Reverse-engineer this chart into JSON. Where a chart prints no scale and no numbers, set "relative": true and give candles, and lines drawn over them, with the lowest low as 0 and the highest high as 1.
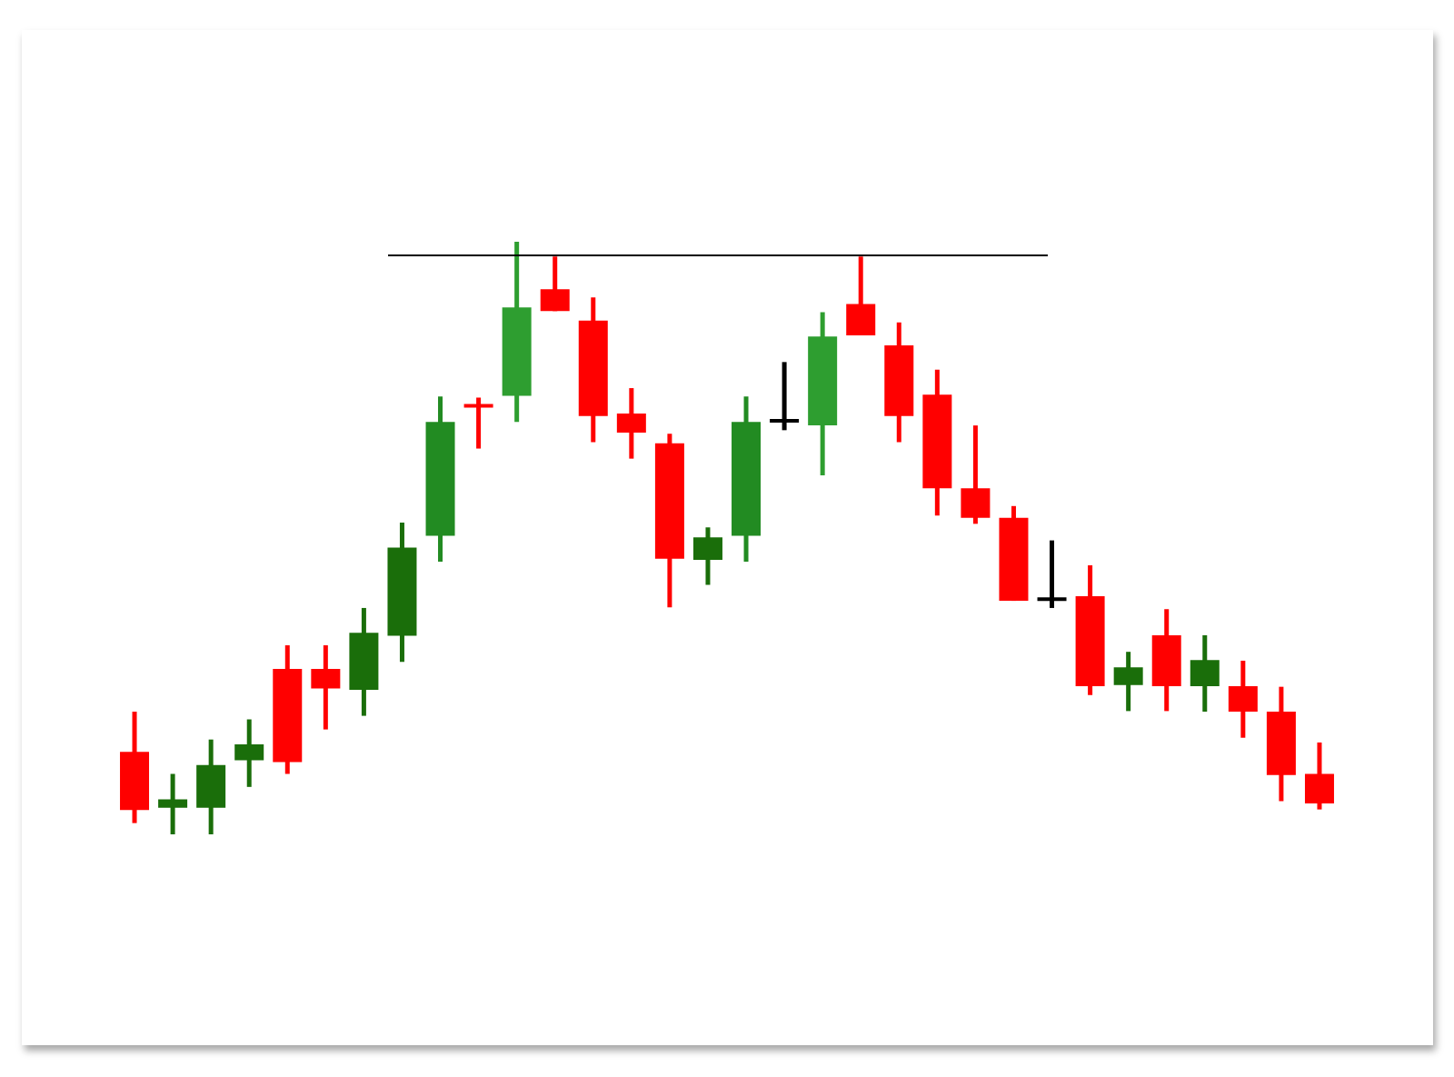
{
  "chart_data": {
    "type": "candlestick",
    "relative": true,
    "categories": [
      null,
      null,
      null,
      null,
      null,
      null,
      null,
      null,
      null,
      null,
      null,
      null,
      null,
      null,
      null,
      null,
      null,
      null,
      null,
      null,
      null,
      null,
      null,
      null,
      null,
      null,
      null,
      null,
      null,
      null,
      null,
      null
    ],
    "ohlc": [
      [
        0.139,
        0.207,
        0.019,
        0.041
      ],
      [
        0.045,
        0.102,
        0,
        0.059
      ],
      [
        0.045,
        0.16,
        0,
        0.117
      ],
      [
        0.125,
        0.194,
        0.08,
        0.152
      ],
      [
        0.279,
        0.319,
        0.102,
        0.122
      ],
      [
        0.279,
        0.319,
        0.177,
        0.246
      ],
      [
        0.244,
        0.382,
        0.2,
        0.34
      ],
      [
        0.335,
        0.526,
        0.291,
        0.484
      ],
      [
        0.504,
        0.739,
        0.46,
        0.696
      ],
      [
        0.725,
        0.737,
        0.651,
        0.721
      ],
      [
        0.74,
        1,
        0.696,
        0.889
      ],
      [
        0.92,
        0.975,
        0.883,
        0.883
      ],
      [
        0.867,
        0.906,
        0.662,
        0.706
      ],
      [
        0.71,
        0.753,
        0.634,
        0.678
      ],
      [
        0.66,
        0.676,
        0.383,
        0.465
      ],
      [
        0.463,
        0.518,
        0.421,
        0.501
      ],
      [
        0.504,
        0.739,
        0.46,
        0.696
      ],
      [
        0.698,
        0.797,
        0.682,
        0.698
      ],
      [
        0.69,
        0.881,
        0.606,
        0.84
      ],
      [
        0.895,
        0.975,
        0.842,
        0.842
      ],
      [
        0.825,
        0.864,
        0.662,
        0.706
      ],
      [
        0.742,
        0.784,
        0.538,
        0.584
      ],
      [
        0.584,
        0.69,
        0.524,
        0.534
      ],
      [
        0.534,
        0.554,
        0.394,
        0.394
      ],
      [
        0.397,
        0.496,
        0.382,
        0.397
      ],
      [
        0.402,
        0.454,
        0.235,
        0.25
      ],
      [
        0.252,
        0.308,
        0.208,
        0.282
      ],
      [
        0.336,
        0.38,
        0.208,
        0.25
      ],
      [
        0.25,
        0.336,
        0.207,
        0.294
      ],
      [
        0.25,
        0.293,
        0.163,
        0.207
      ],
      [
        0.207,
        0.249,
        0.056,
        0.1
      ],
      [
        0.102,
        0.155,
        0.042,
        0.052
      ]
    ],
    "colors": [
      "#ff0000",
      "#1a6e0a",
      "#1a6e0a",
      "#1a6e0a",
      "#ff0000",
      "#ff0000",
      "#1a6e0a",
      "#1a6e0a",
      "#228b22",
      "#ff0000",
      "#2e9e30",
      "#ff0000",
      "#ff0000",
      "#ff0000",
      "#ff0000",
      "#1a6e0a",
      "#228b22",
      "#000000",
      "#2e9e30",
      "#ff0000",
      "#ff0000",
      "#ff0000",
      "#ff0000",
      "#ff0000",
      "#000000",
      "#ff0000",
      "#1a6e0a",
      "#ff0000",
      "#1a6e0a",
      "#ff0000",
      "#ff0000",
      "#ff0000"
    ],
    "ref_lines": [
      {
        "axis": "y",
        "value": 0.977,
        "color": "#000000"
      }
    ]
  }
}
